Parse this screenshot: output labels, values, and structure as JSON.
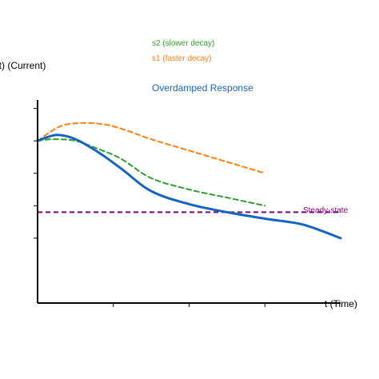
{
  "chart_data": {
    "type": "line",
    "title": "Overdamped Response",
    "xlabel": "t (Time)",
    "ylabel": "i(t) (Current)",
    "xlim": [
      0,
      4
    ],
    "ylim": [
      -2,
      5
    ],
    "grid": false,
    "x_ticks": [
      1,
      2,
      3
    ],
    "y_ticks": [
      0,
      1,
      2,
      3,
      4
    ],
    "steady_state": {
      "label": "Steady-state",
      "value": 0.8,
      "color": "#800080"
    },
    "series": [
      {
        "key": "s2",
        "name": "s2 (slower decay)",
        "color": "#2ca02c",
        "dashed": true,
        "points": [
          [
            0,
            3.0
          ],
          [
            0.2,
            3.05
          ],
          [
            0.5,
            3.0
          ],
          [
            0.8,
            2.75
          ],
          [
            1.1,
            2.45
          ],
          [
            1.5,
            1.85
          ],
          [
            2.0,
            1.5
          ],
          [
            2.5,
            1.25
          ],
          [
            3.0,
            1.0
          ]
        ]
      },
      {
        "key": "s1",
        "name": "s1 (faster decay)",
        "color": "#ff7f0e",
        "dashed": true,
        "points": [
          [
            0,
            3.0
          ],
          [
            0.3,
            3.45
          ],
          [
            0.6,
            3.55
          ],
          [
            0.9,
            3.5
          ],
          [
            1.2,
            3.3
          ],
          [
            1.5,
            3.05
          ],
          [
            2.0,
            2.7
          ],
          [
            2.5,
            2.35
          ],
          [
            3.0,
            2.0
          ]
        ]
      },
      {
        "key": "main",
        "name": "Overdamped Response",
        "color": "#1565c0",
        "dashed": false,
        "points": [
          [
            0,
            3.0
          ],
          [
            0.25,
            3.18
          ],
          [
            0.5,
            3.05
          ],
          [
            0.8,
            2.65
          ],
          [
            1.1,
            2.15
          ],
          [
            1.5,
            1.45
          ],
          [
            2.0,
            1.05
          ],
          [
            2.5,
            0.8
          ],
          [
            3.0,
            0.6
          ],
          [
            3.5,
            0.42
          ],
          [
            4.0,
            0.0
          ]
        ]
      }
    ]
  }
}
